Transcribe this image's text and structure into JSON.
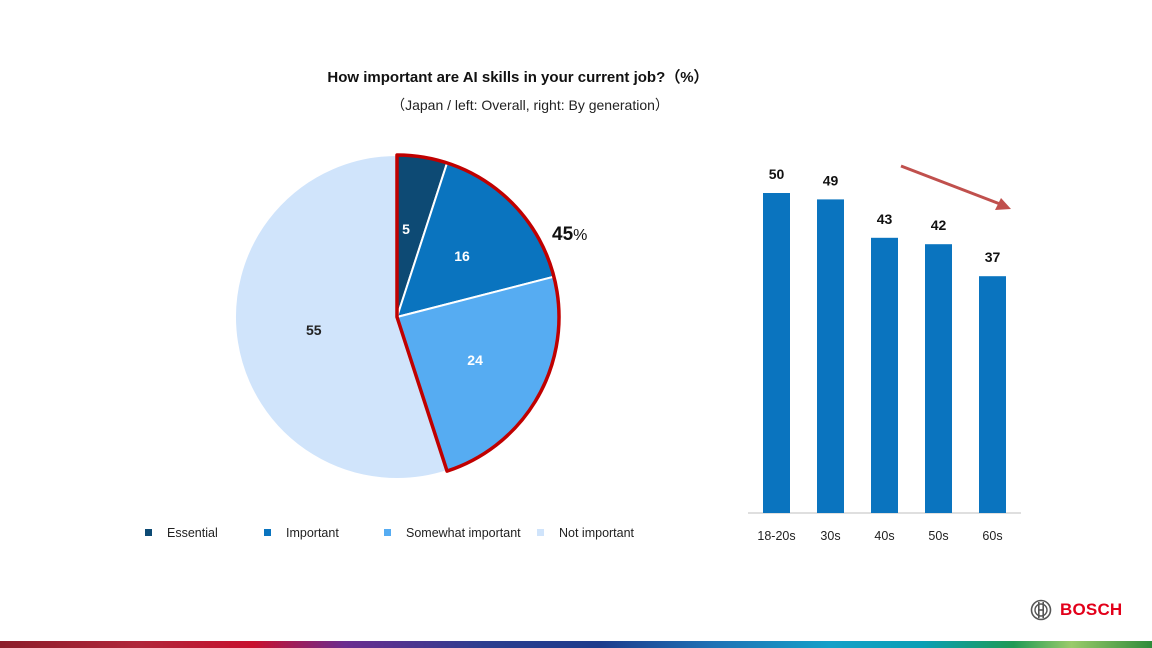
{
  "title": "How important are AI skills in your current job?（%）",
  "subtitle": "（Japan / left: Overall, right: By generation）",
  "colors": {
    "essential": "#0d4a74",
    "important": "#0a74bf",
    "somewhat": "#56acf2",
    "not_important": "#d0e4fb",
    "bars": "#0a74bf",
    "highlight": "#c00000",
    "arrow": "#c0504d",
    "brand": "#e2001a"
  },
  "chart_data": [
    {
      "type": "pie",
      "categories": [
        "Essential",
        "Important",
        "Somewhat important",
        "Not important"
      ],
      "values": [
        5,
        16,
        24,
        55
      ],
      "annotation": {
        "value": "45",
        "unit": "%"
      },
      "legend": {
        "position": "bottom"
      }
    },
    {
      "type": "bar",
      "categories": [
        "18-20s",
        "30s",
        "40s",
        "50s",
        "60s"
      ],
      "values": [
        50,
        49,
        43,
        42,
        37
      ],
      "ylim": [
        0,
        60
      ],
      "trend": "decreasing"
    }
  ],
  "brand": {
    "name": "BOSCH"
  }
}
